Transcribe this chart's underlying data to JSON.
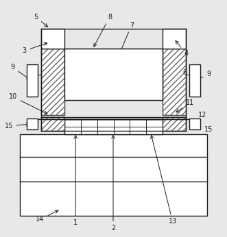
{
  "fig_width": 3.31,
  "fig_height": 3.46,
  "dpi": 100,
  "bg_color": "#e8e8e8",
  "line_color": "#1a1a1a",
  "label_fontsize": 7.0
}
